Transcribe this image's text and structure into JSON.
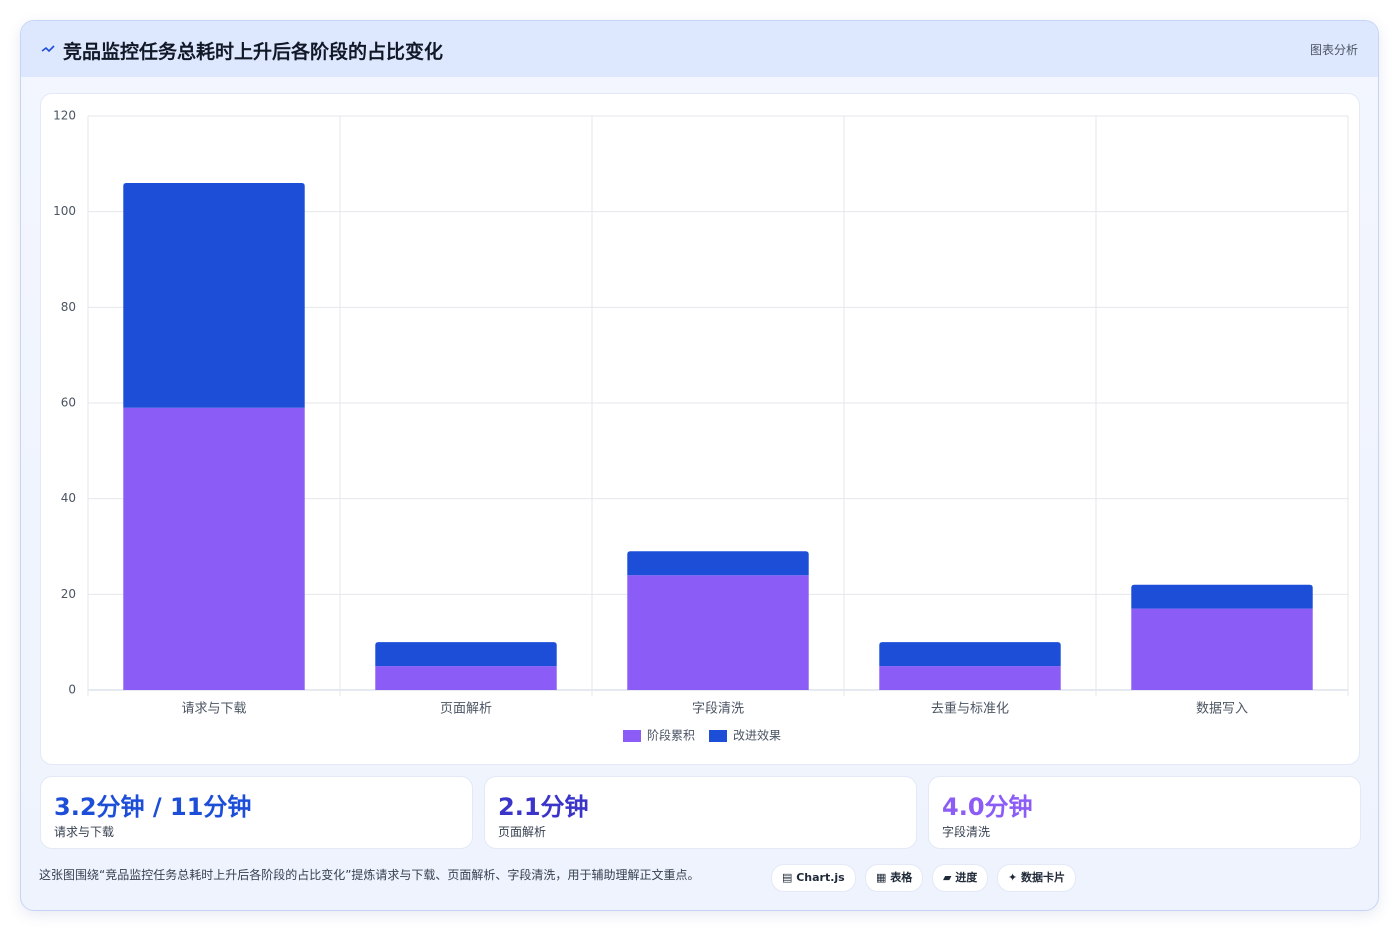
{
  "header": {
    "title": "竞品监控任务总耗时上升后各阶段的占比变化",
    "label": "图表分析"
  },
  "chart_data": {
    "type": "bar",
    "stacked": true,
    "categories": [
      "请求与下载",
      "页面解析",
      "字段清洗",
      "去重与标准化",
      "数据写入"
    ],
    "series": [
      {
        "name": "阶段累积",
        "color": "#8b5cf6",
        "values": [
          59,
          5,
          24,
          5,
          17
        ]
      },
      {
        "name": "改进效果",
        "color": "#1d4ed8",
        "values": [
          47,
          5,
          5,
          5,
          5
        ]
      }
    ],
    "ylim": [
      0,
      120
    ],
    "yticks": [
      0,
      20,
      40,
      60,
      80,
      100,
      120
    ],
    "grid": true,
    "legend": "bottom"
  },
  "cards": [
    {
      "value": "3.2分钟 / 11分钟",
      "label": "请求与下载",
      "color": "#1d4ed8"
    },
    {
      "value": "2.1分钟",
      "label": "页面解析",
      "color": "#3b34c9"
    },
    {
      "value": "4.0分钟",
      "label": "字段清洗",
      "color": "#8b5cf6"
    }
  ],
  "footer": {
    "text": "这张图围绕“竞品监控任务总耗时上升后各阶段的占比变化”提炼请求与下载、页面解析、字段清洗，用于辅助理解正文重点。",
    "tags": [
      "▤ Chart.js",
      "▦ 表格",
      "▰ 进度",
      "✦ 数据卡片"
    ]
  }
}
